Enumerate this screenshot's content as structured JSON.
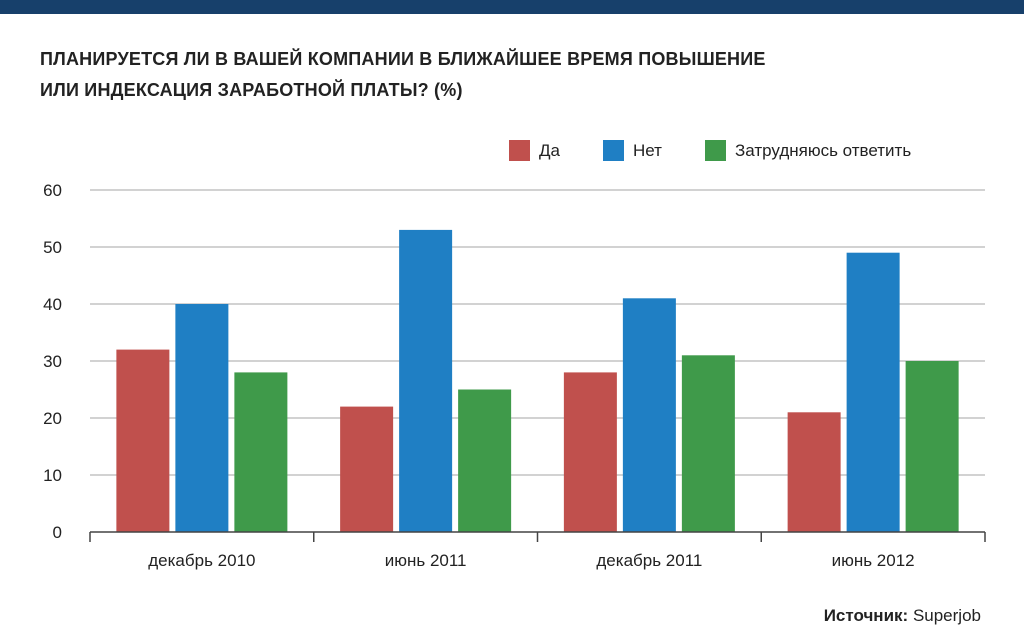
{
  "page": {
    "top_bar_color": "#17406b",
    "source_label": "Источник:",
    "source_value": "Superjob"
  },
  "chart_data": {
    "type": "bar",
    "title_lines": [
      "Планируется ли в вашей компании в ближайшее время повышение",
      "или индексация заработной платы? (%)"
    ],
    "categories": [
      "декабрь 2010",
      "июнь 2011",
      "декабрь 2011",
      "июнь 2012"
    ],
    "series": [
      {
        "name": "Да",
        "color": "#c0504d",
        "values": [
          32,
          22,
          28,
          21
        ]
      },
      {
        "name": "Нет",
        "color": "#1f7fc4",
        "values": [
          40,
          53,
          41,
          49
        ]
      },
      {
        "name": "Затрудняюсь ответить",
        "color": "#3f9a4a",
        "values": [
          28,
          25,
          31,
          30
        ]
      }
    ],
    "ylim": [
      0,
      60
    ],
    "yticks": [
      0,
      10,
      20,
      30,
      40,
      50,
      60
    ],
    "grid": true,
    "legend_position": "top-right",
    "xlabel": "",
    "ylabel": ""
  }
}
